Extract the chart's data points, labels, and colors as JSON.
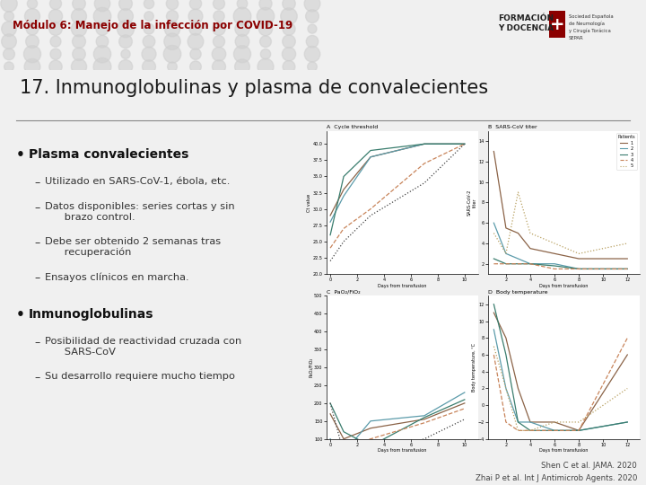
{
  "title_module": "Módulo 6: Manejo de la infección por COVID-19",
  "title_main": "17. Inmunoglobulinas y plasma de convalecientes",
  "module_color": "#8B0000",
  "title_color": "#1a1a1a",
  "background_color": "#f0f0f0",
  "bullet1_title": "Plasma convalecientes",
  "bullet1_items": [
    "Utilizado en SARS-CoV-1, ébola, etc.",
    "Datos disponibles: series cortas y sin\n      brazo control.",
    "Debe ser obtenido 2 semanas tras\n      recuperación",
    "Ensayos clínicos en marcha."
  ],
  "bullet2_title": "Inmunoglobulinas",
  "bullet2_items": [
    "Posibilidad de reactividad cruzada con\n      SARS-CoV",
    "Su desarrollo requiere mucho tiempo"
  ],
  "ref1": "Shen C et al. JAMA. 2020",
  "ref2": "Zhai P et al. Int J Antimicrob Agents. 2020",
  "lc": [
    "#8B6347",
    "#5B9BAA",
    "#3A7D6E",
    "#C8845A",
    "#444444"
  ],
  "lc2": [
    "#8B6347",
    "#5B9BAA",
    "#3A7D6E",
    "#C8845A",
    "#B8A060"
  ],
  "styles": [
    "-",
    "-",
    "-",
    "--",
    ":"
  ]
}
